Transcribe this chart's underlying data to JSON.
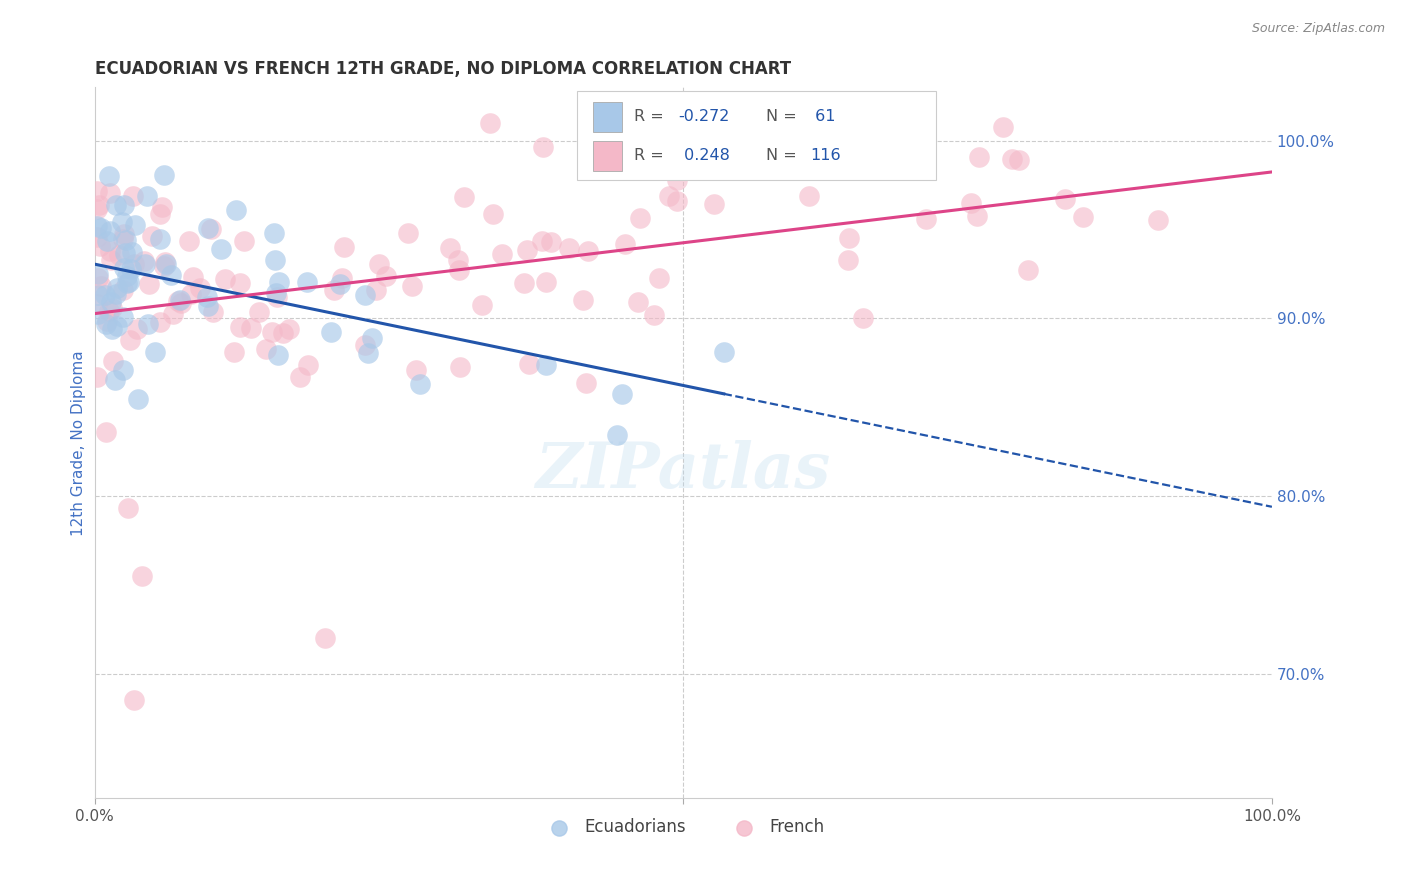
{
  "title": "ECUADORIAN VS FRENCH 12TH GRADE, NO DIPLOMA CORRELATION CHART",
  "source_text": "Source: ZipAtlas.com",
  "ylabel": "12th Grade, No Diploma",
  "legend_r1_label": "R = ",
  "legend_r1_val": "-0.272",
  "legend_n1_label": "N = ",
  "legend_n1_val": " 61",
  "legend_r2_label": "R = ",
  "legend_r2_val": " 0.248",
  "legend_n2_label": "N = ",
  "legend_n2_val": "116",
  "blue_fill": "#a8c8e8",
  "blue_edge": "#6699cc",
  "pink_fill": "#f4b8c8",
  "pink_edge": "#e89aaa",
  "blue_line_color": "#2255aa",
  "pink_line_color": "#dd4488",
  "watermark": "ZIPatlas",
  "bg_color": "#ffffff",
  "grid_color": "#cccccc",
  "title_color": "#333333",
  "ylabel_color": "#4472c4",
  "right_axis_color": "#4472c4",
  "source_color": "#888888",
  "ecuadorian_N": 61,
  "french_N": 116,
  "xlim": [
    0,
    100
  ],
  "ylim": [
    63,
    103
  ],
  "yticks": [
    70,
    80,
    90,
    100
  ],
  "ytick_labels": [
    "70.0%",
    "80.0%",
    "90.0%",
    "100.0%"
  ]
}
